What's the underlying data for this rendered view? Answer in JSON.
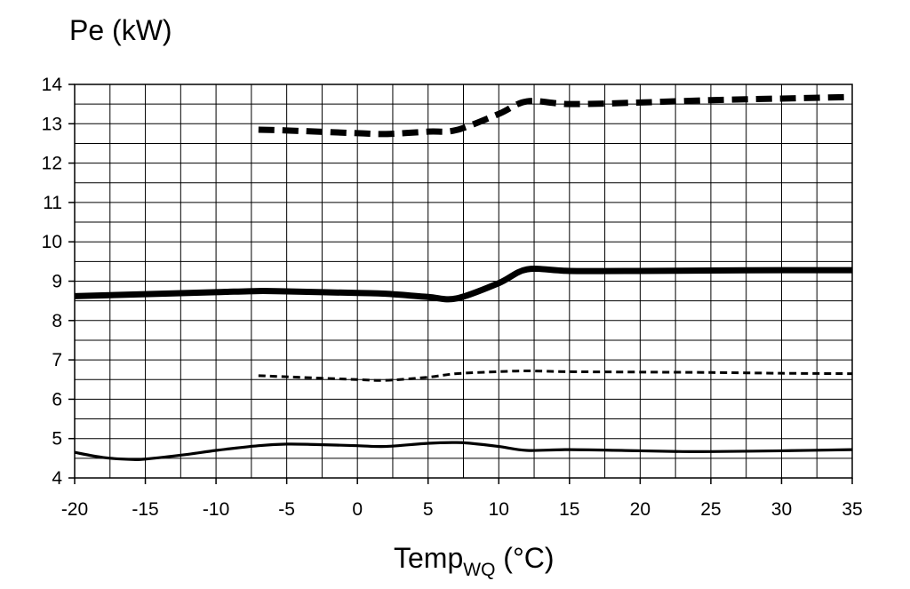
{
  "chart_data": {
    "type": "line",
    "ylabel": "Pe (kW)",
    "xlabel_main": "Temp",
    "xlabel_sub": "WQ",
    "xlabel_unit": " (°C)",
    "xlim": [
      -20,
      35
    ],
    "ylim": [
      4,
      14
    ],
    "xticks": [
      -20,
      -15,
      -10,
      -5,
      0,
      5,
      10,
      15,
      20,
      25,
      30,
      35
    ],
    "yticks": [
      4,
      5,
      6,
      7,
      8,
      9,
      10,
      11,
      12,
      13,
      14
    ],
    "x_minor_step": 2.5,
    "y_minor_step": 0.5,
    "grid": true,
    "legend": "none",
    "series": [
      {
        "style": "thick-dashed",
        "color": "#000000",
        "x": [
          -7,
          -5,
          0,
          2,
          5,
          7,
          10,
          12,
          15,
          20,
          25,
          30,
          35
        ],
        "y": [
          12.85,
          12.83,
          12.76,
          12.74,
          12.8,
          12.84,
          13.25,
          13.57,
          13.5,
          13.54,
          13.6,
          13.64,
          13.68
        ]
      },
      {
        "style": "thick-solid",
        "color": "#000000",
        "x": [
          -20,
          -15,
          -10,
          -7,
          -5,
          0,
          2,
          5,
          7,
          10,
          12,
          15,
          20,
          25,
          30,
          35
        ],
        "y": [
          8.62,
          8.67,
          8.72,
          8.75,
          8.74,
          8.7,
          8.68,
          8.6,
          8.56,
          8.95,
          9.3,
          9.26,
          9.26,
          9.27,
          9.28,
          9.28
        ]
      },
      {
        "style": "thin-dashed",
        "color": "#000000",
        "x": [
          -7,
          -5,
          0,
          2,
          5,
          7,
          10,
          12,
          15,
          20,
          25,
          30,
          35
        ],
        "y": [
          6.6,
          6.57,
          6.5,
          6.48,
          6.56,
          6.65,
          6.7,
          6.72,
          6.7,
          6.69,
          6.68,
          6.66,
          6.65
        ]
      },
      {
        "style": "thin-solid",
        "color": "#000000",
        "x": [
          -20,
          -18,
          -16,
          -15,
          -12,
          -10,
          -7,
          -5,
          -3,
          0,
          2,
          5,
          7,
          8,
          10,
          12,
          15,
          20,
          23,
          25,
          30,
          35
        ],
        "y": [
          4.65,
          4.52,
          4.47,
          4.48,
          4.6,
          4.7,
          4.82,
          4.86,
          4.85,
          4.82,
          4.8,
          4.88,
          4.9,
          4.88,
          4.8,
          4.7,
          4.72,
          4.69,
          4.67,
          4.67,
          4.69,
          4.72
        ]
      }
    ]
  }
}
